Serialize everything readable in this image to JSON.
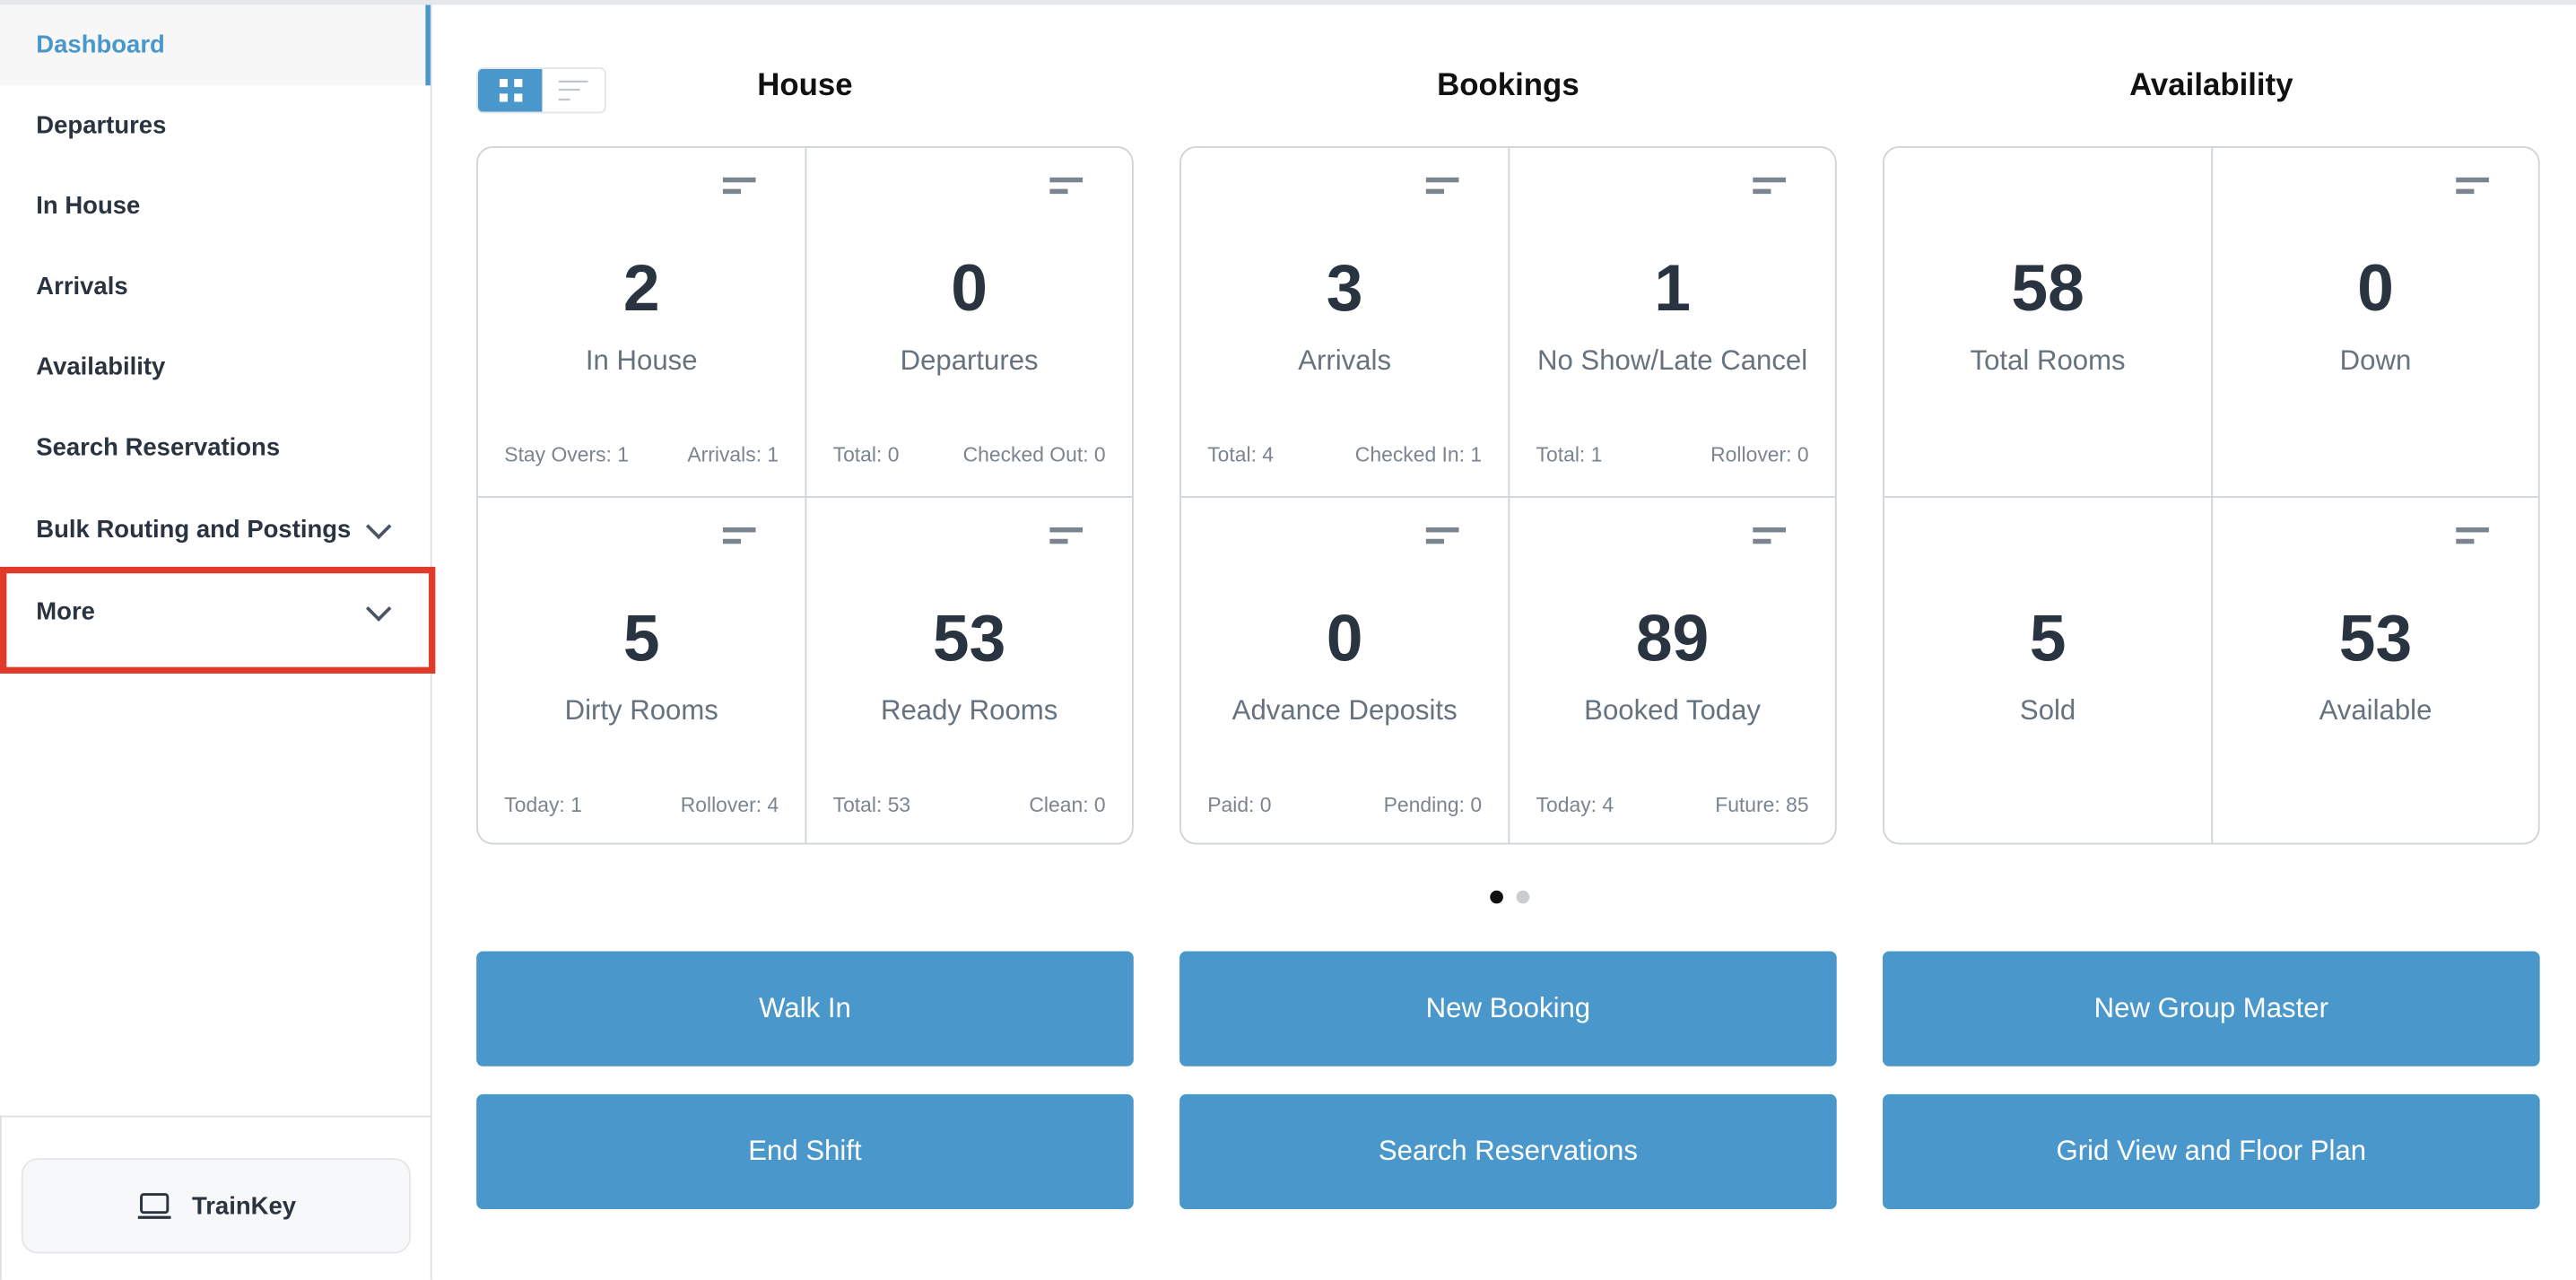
{
  "sidebar": {
    "items": [
      {
        "label": "Dashboard",
        "active": true
      },
      {
        "label": "Departures"
      },
      {
        "label": "In House"
      },
      {
        "label": "Arrivals"
      },
      {
        "label": "Availability"
      },
      {
        "label": "Search Reservations"
      },
      {
        "label": "Bulk Routing and Postings",
        "expandable": true
      },
      {
        "label": "More",
        "expandable": true,
        "highlighted": true
      }
    ],
    "trainkey_label": "TrainKey"
  },
  "view_toggle": {
    "selected": "grid"
  },
  "sections": [
    {
      "title": "House",
      "tiles": [
        {
          "value": "2",
          "label": "In House",
          "left": "Stay Overs: 1",
          "right": "Arrivals: 1",
          "menu": true
        },
        {
          "value": "0",
          "label": "Departures",
          "left": "Total: 0",
          "right": "Checked Out: 0",
          "menu": true
        },
        {
          "value": "5",
          "label": "Dirty Rooms",
          "left": "Today: 1",
          "right": "Rollover: 4",
          "menu": true
        },
        {
          "value": "53",
          "label": "Ready Rooms",
          "left": "Total: 53",
          "right": "Clean: 0",
          "menu": true
        }
      ]
    },
    {
      "title": "Bookings",
      "tiles": [
        {
          "value": "3",
          "label": "Arrivals",
          "left": "Total: 4",
          "right": "Checked In: 1",
          "menu": true
        },
        {
          "value": "1",
          "label": "No Show/Late Cancel",
          "left": "Total: 1",
          "right": "Rollover: 0",
          "menu": true
        },
        {
          "value": "0",
          "label": "Advance Deposits",
          "left": "Paid: 0",
          "right": "Pending: 0",
          "menu": true
        },
        {
          "value": "89",
          "label": "Booked Today",
          "left": "Today: 4",
          "right": "Future: 85",
          "menu": true
        }
      ]
    },
    {
      "title": "Availability",
      "tiles": [
        {
          "value": "58",
          "label": "Total Rooms",
          "left": "",
          "right": "",
          "menu": false
        },
        {
          "value": "0",
          "label": "Down",
          "left": "",
          "right": "",
          "menu": true
        },
        {
          "value": "5",
          "label": "Sold",
          "left": "",
          "right": "",
          "menu": false
        },
        {
          "value": "53",
          "label": "Available",
          "left": "",
          "right": "",
          "menu": true
        }
      ]
    }
  ],
  "pagination": {
    "pages": 2,
    "current": 1
  },
  "actions": [
    "Walk In",
    "New Booking",
    "New Group Master",
    "End Shift",
    "Search Reservations",
    "Grid View and Floor Plan"
  ],
  "colors": {
    "accent": "#4a98cb",
    "highlight": "#e03a2a"
  }
}
